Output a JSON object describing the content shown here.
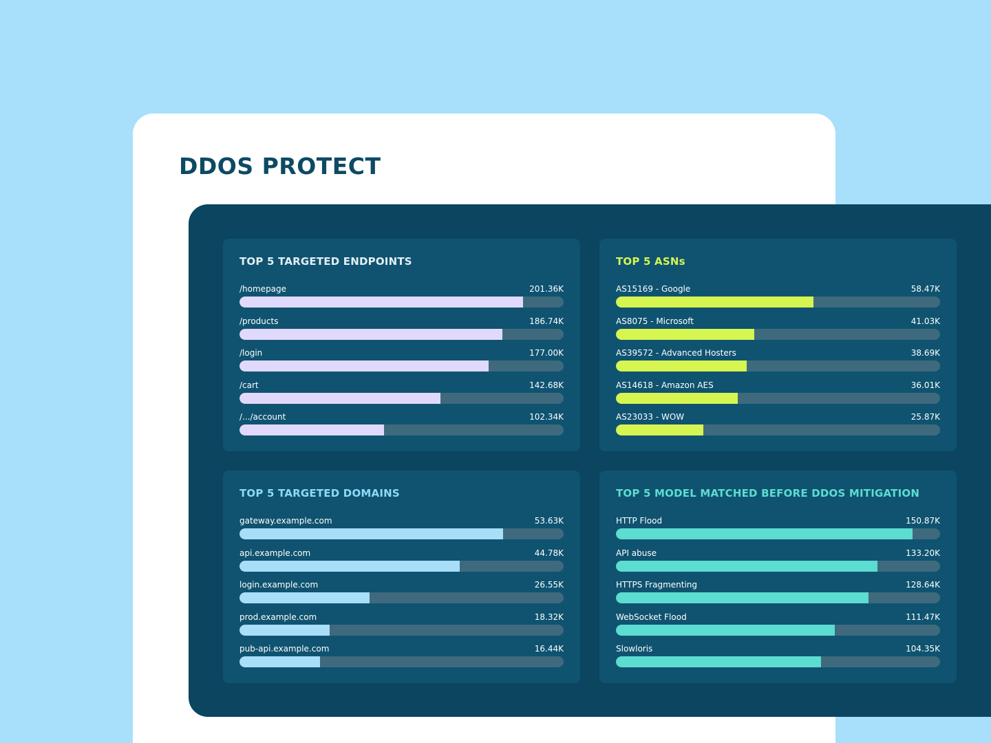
{
  "header": {
    "title": "DDOS PROTECT"
  },
  "chart_data": [
    {
      "type": "bar",
      "title": "TOP 5 TARGETED ENDPOINTS",
      "title_color": "#e4eef3",
      "color": "#e1d9fb",
      "categories": [
        "/homepage",
        "/products",
        "/login",
        "/cart",
        "/.../account"
      ],
      "values": [
        201.36,
        186.74,
        177.0,
        142.68,
        102.34
      ],
      "value_labels": [
        "201.36K",
        "186.74K",
        "177.00K",
        "142.68K",
        "102.34K"
      ],
      "xlim": [
        0,
        230
      ]
    },
    {
      "type": "bar",
      "title": "TOP 5 ASNs",
      "title_color": "#d6f550",
      "color": "#d6f550",
      "categories": [
        "AS15169 - Google",
        "AS8075 - Microsoft",
        "AS39572 - Advanced Hosters",
        "AS14618 - Amazon AES",
        "AS23033 - WOW"
      ],
      "values": [
        58.47,
        41.03,
        38.69,
        36.01,
        25.87
      ],
      "value_labels": [
        "58.47K",
        "41.03K",
        "38.69K",
        "36.01K",
        "25.87K"
      ],
      "xlim": [
        0,
        96
      ]
    },
    {
      "type": "bar",
      "title": "TOP 5 TARGETED DOMAINS",
      "title_color": "#8fd9f8",
      "color": "#a8def8",
      "categories": [
        "gateway.example.com",
        "api.example.com",
        "login.example.com",
        "prod.example.com",
        "pub-api.example.com"
      ],
      "values": [
        53.63,
        44.78,
        26.55,
        18.32,
        16.44
      ],
      "value_labels": [
        "53.63K",
        "44.78K",
        "26.55K",
        "18.32K",
        "16.44K"
      ],
      "xlim": [
        0,
        66
      ]
    },
    {
      "type": "bar",
      "title": "TOP 5 MODEL MATCHED BEFORE DDOS MITIGATION",
      "title_color": "#5ddcd1",
      "color": "#5ddcd1",
      "categories": [
        "HTTP Flood",
        "API abuse",
        "HTTPS Fragmenting",
        "WebSocket Flood",
        "Slowloris"
      ],
      "values": [
        150.87,
        133.2,
        128.64,
        111.47,
        104.35
      ],
      "value_labels": [
        "150.87K",
        "133.20K",
        "128.64K",
        "111.47K",
        "104.35K"
      ],
      "xlim": [
        0,
        165
      ]
    }
  ]
}
